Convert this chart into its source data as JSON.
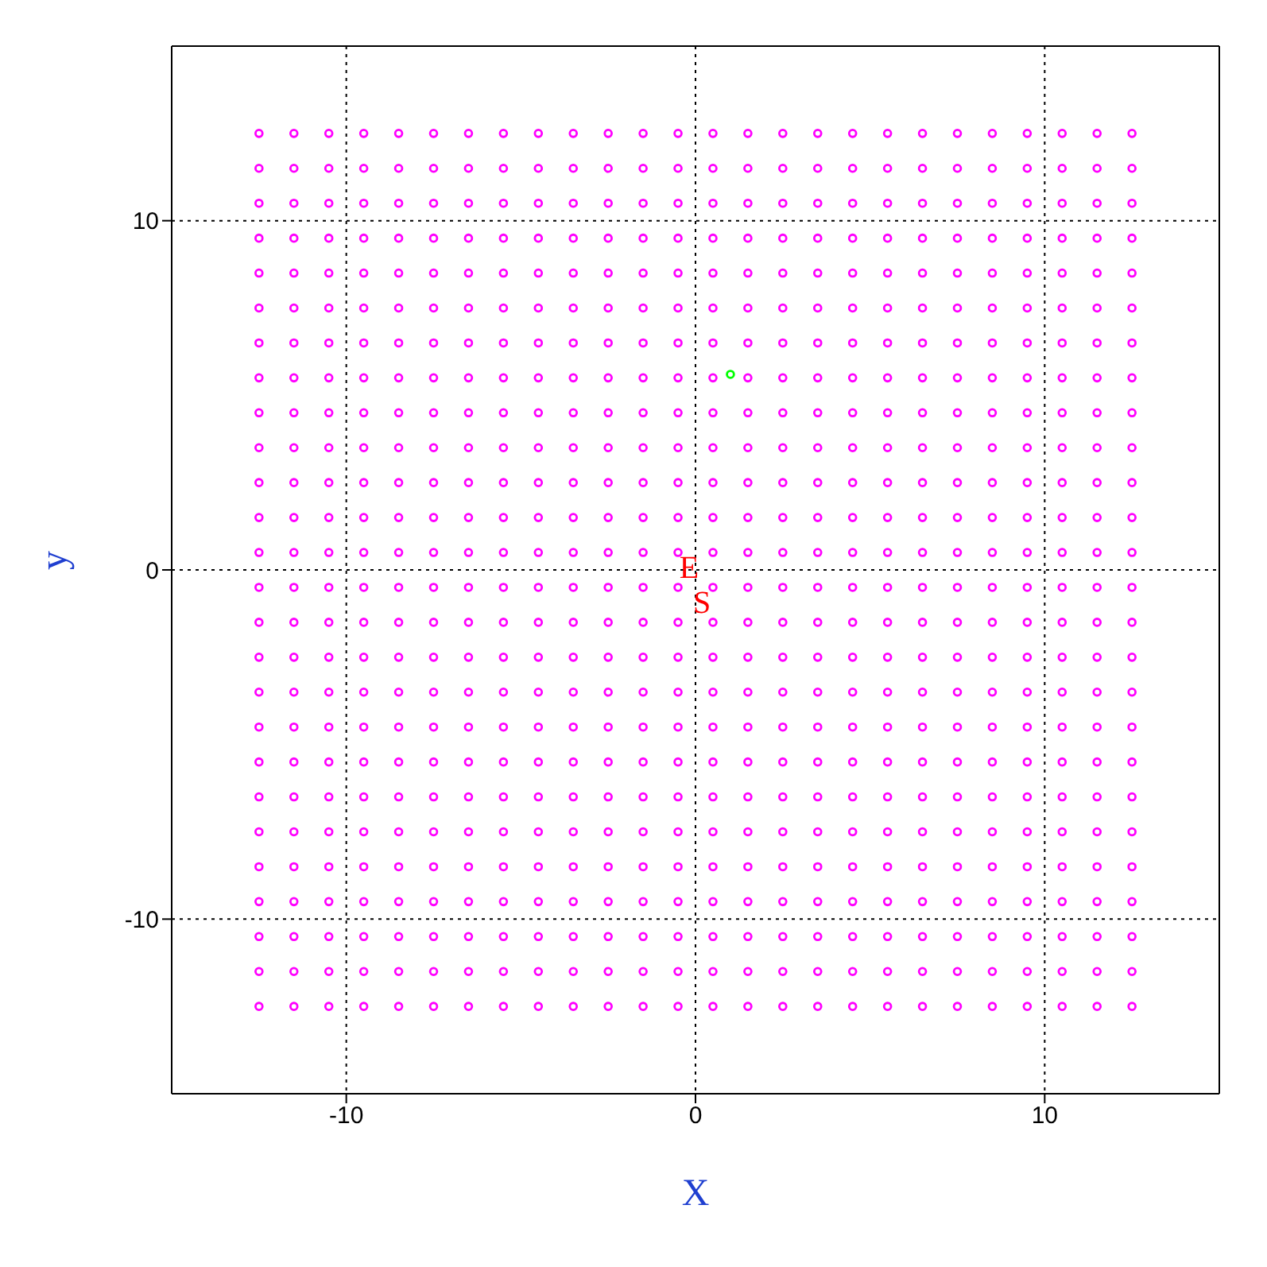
{
  "chart_data": {
    "type": "scatter",
    "xlabel": "X",
    "ylabel": "y",
    "xlim": [
      -15,
      15
    ],
    "ylim": [
      -15,
      15
    ],
    "xticks": [
      -10,
      0,
      10
    ],
    "yticks": [
      -10,
      0,
      10
    ],
    "grid": true,
    "marker": "circle",
    "x": [
      -12.5,
      -11.5,
      -10.5,
      -9.5,
      -8.5,
      -7.5,
      -6.5,
      -5.5,
      -4.5,
      -3.5,
      -2.5,
      -1.5,
      -0.5,
      0.5,
      1.5,
      2.5,
      3.5,
      4.5,
      5.5,
      6.5,
      7.5,
      8.5,
      9.5,
      10.5,
      11.5,
      12.5
    ],
    "series": [
      {
        "color": "#ff00ff",
        "values": [
          12.5,
          12.5,
          12.5,
          12.5,
          12.5,
          12.5,
          12.5,
          12.5,
          12.5,
          12.5,
          12.5,
          12.5,
          12.5,
          12.5,
          12.5,
          12.5,
          12.5,
          12.5,
          12.5,
          12.5,
          12.5,
          12.5,
          12.5,
          12.5,
          12.5,
          12.5
        ]
      },
      {
        "color": "#ff00ff",
        "values": [
          11.5,
          11.5,
          11.5,
          11.5,
          11.5,
          11.5,
          11.5,
          11.5,
          11.5,
          11.5,
          11.5,
          11.5,
          11.5,
          11.5,
          11.5,
          11.5,
          11.5,
          11.5,
          11.5,
          11.5,
          11.5,
          11.5,
          11.5,
          11.5,
          11.5,
          11.5
        ]
      },
      {
        "color": "#ff00ff",
        "values": [
          10.5,
          10.5,
          10.5,
          10.5,
          10.5,
          10.5,
          10.5,
          10.5,
          10.5,
          10.5,
          10.5,
          10.5,
          10.5,
          10.5,
          10.5,
          10.5,
          10.5,
          10.5,
          10.5,
          10.5,
          10.5,
          10.5,
          10.5,
          10.5,
          10.5,
          10.5
        ]
      },
      {
        "color": "#ff00ff",
        "values": [
          9.5,
          9.5,
          9.5,
          9.5,
          9.5,
          9.5,
          9.5,
          9.5,
          9.5,
          9.5,
          9.5,
          9.5,
          9.5,
          9.5,
          9.5,
          9.5,
          9.5,
          9.5,
          9.5,
          9.5,
          9.5,
          9.5,
          9.5,
          9.5,
          9.5,
          9.5
        ]
      },
      {
        "color": "#ff00ff",
        "values": [
          8.5,
          8.5,
          8.5,
          8.5,
          8.5,
          8.5,
          8.5,
          8.5,
          8.5,
          8.5,
          8.5,
          8.5,
          8.5,
          8.5,
          8.5,
          8.5,
          8.5,
          8.5,
          8.5,
          8.5,
          8.5,
          8.5,
          8.5,
          8.5,
          8.5,
          8.5
        ]
      },
      {
        "color": "#ff00ff",
        "values": [
          7.5,
          7.5,
          7.5,
          7.5,
          7.5,
          7.5,
          7.5,
          7.5,
          7.5,
          7.5,
          7.5,
          7.5,
          7.5,
          7.5,
          7.5,
          7.5,
          7.5,
          7.5,
          7.5,
          7.5,
          7.5,
          7.5,
          7.5,
          7.5,
          7.5,
          7.5
        ]
      },
      {
        "color": "#ff00ff",
        "values": [
          6.5,
          6.5,
          6.5,
          6.5,
          6.5,
          6.5,
          6.5,
          6.5,
          6.5,
          6.5,
          6.5,
          6.5,
          6.5,
          6.5,
          6.5,
          6.5,
          6.5,
          6.5,
          6.5,
          6.5,
          6.5,
          6.5,
          6.5,
          6.5,
          6.5,
          6.5
        ]
      },
      {
        "color": "#ff00ff",
        "values": [
          5.5,
          5.5,
          5.5,
          5.5,
          5.5,
          5.5,
          5.5,
          5.5,
          5.5,
          5.5,
          5.5,
          5.5,
          5.5,
          5.5,
          5.5,
          5.5,
          5.5,
          5.5,
          5.5,
          5.5,
          5.5,
          5.5,
          5.5,
          5.5,
          5.5,
          5.5
        ]
      },
      {
        "color": "#ff00ff",
        "values": [
          4.5,
          4.5,
          4.5,
          4.5,
          4.5,
          4.5,
          4.5,
          4.5,
          4.5,
          4.5,
          4.5,
          4.5,
          4.5,
          4.5,
          4.5,
          4.5,
          4.5,
          4.5,
          4.5,
          4.5,
          4.5,
          4.5,
          4.5,
          4.5,
          4.5,
          4.5
        ]
      },
      {
        "color": "#ff00ff",
        "values": [
          3.5,
          3.5,
          3.5,
          3.5,
          3.5,
          3.5,
          3.5,
          3.5,
          3.5,
          3.5,
          3.5,
          3.5,
          3.5,
          3.5,
          3.5,
          3.5,
          3.5,
          3.5,
          3.5,
          3.5,
          3.5,
          3.5,
          3.5,
          3.5,
          3.5,
          3.5
        ]
      },
      {
        "color": "#ff00ff",
        "values": [
          2.5,
          2.5,
          2.5,
          2.5,
          2.5,
          2.5,
          2.5,
          2.5,
          2.5,
          2.5,
          2.5,
          2.5,
          2.5,
          2.5,
          2.5,
          2.5,
          2.5,
          2.5,
          2.5,
          2.5,
          2.5,
          2.5,
          2.5,
          2.5,
          2.5,
          2.5
        ]
      },
      {
        "color": "#ff00ff",
        "values": [
          1.5,
          1.5,
          1.5,
          1.5,
          1.5,
          1.5,
          1.5,
          1.5,
          1.5,
          1.5,
          1.5,
          1.5,
          1.5,
          1.5,
          1.5,
          1.5,
          1.5,
          1.5,
          1.5,
          1.5,
          1.5,
          1.5,
          1.5,
          1.5,
          1.5,
          1.5
        ]
      },
      {
        "color": "#ff00ff",
        "values": [
          0.5,
          0.5,
          0.5,
          0.5,
          0.5,
          0.5,
          0.5,
          0.5,
          0.5,
          0.5,
          0.5,
          0.5,
          0.5,
          0.5,
          0.5,
          0.5,
          0.5,
          0.5,
          0.5,
          0.5,
          0.5,
          0.5,
          0.5,
          0.5,
          0.5,
          0.5
        ]
      },
      {
        "color": "#ff00ff",
        "values": [
          -0.5,
          -0.5,
          -0.5,
          -0.5,
          -0.5,
          -0.5,
          -0.5,
          -0.5,
          -0.5,
          -0.5,
          -0.5,
          -0.5,
          -0.5,
          -0.5,
          -0.5,
          -0.5,
          -0.5,
          -0.5,
          -0.5,
          -0.5,
          -0.5,
          -0.5,
          -0.5,
          -0.5,
          -0.5,
          -0.5
        ]
      },
      {
        "color": "#ff00ff",
        "values": [
          -1.5,
          -1.5,
          -1.5,
          -1.5,
          -1.5,
          -1.5,
          -1.5,
          -1.5,
          -1.5,
          -1.5,
          -1.5,
          -1.5,
          -1.5,
          -1.5,
          -1.5,
          -1.5,
          -1.5,
          -1.5,
          -1.5,
          -1.5,
          -1.5,
          -1.5,
          -1.5,
          -1.5,
          -1.5,
          -1.5
        ]
      },
      {
        "color": "#ff00ff",
        "values": [
          -2.5,
          -2.5,
          -2.5,
          -2.5,
          -2.5,
          -2.5,
          -2.5,
          -2.5,
          -2.5,
          -2.5,
          -2.5,
          -2.5,
          -2.5,
          -2.5,
          -2.5,
          -2.5,
          -2.5,
          -2.5,
          -2.5,
          -2.5,
          -2.5,
          -2.5,
          -2.5,
          -2.5,
          -2.5,
          -2.5
        ]
      },
      {
        "color": "#ff00ff",
        "values": [
          -3.5,
          -3.5,
          -3.5,
          -3.5,
          -3.5,
          -3.5,
          -3.5,
          -3.5,
          -3.5,
          -3.5,
          -3.5,
          -3.5,
          -3.5,
          -3.5,
          -3.5,
          -3.5,
          -3.5,
          -3.5,
          -3.5,
          -3.5,
          -3.5,
          -3.5,
          -3.5,
          -3.5,
          -3.5,
          -3.5
        ]
      },
      {
        "color": "#ff00ff",
        "values": [
          -4.5,
          -4.5,
          -4.5,
          -4.5,
          -4.5,
          -4.5,
          -4.5,
          -4.5,
          -4.5,
          -4.5,
          -4.5,
          -4.5,
          -4.5,
          -4.5,
          -4.5,
          -4.5,
          -4.5,
          -4.5,
          -4.5,
          -4.5,
          -4.5,
          -4.5,
          -4.5,
          -4.5,
          -4.5,
          -4.5
        ]
      },
      {
        "color": "#ff00ff",
        "values": [
          -5.5,
          -5.5,
          -5.5,
          -5.5,
          -5.5,
          -5.5,
          -5.5,
          -5.5,
          -5.5,
          -5.5,
          -5.5,
          -5.5,
          -5.5,
          -5.5,
          -5.5,
          -5.5,
          -5.5,
          -5.5,
          -5.5,
          -5.5,
          -5.5,
          -5.5,
          -5.5,
          -5.5,
          -5.5,
          -5.5
        ]
      },
      {
        "color": "#ff00ff",
        "values": [
          -6.5,
          -6.5,
          -6.5,
          -6.5,
          -6.5,
          -6.5,
          -6.5,
          -6.5,
          -6.5,
          -6.5,
          -6.5,
          -6.5,
          -6.5,
          -6.5,
          -6.5,
          -6.5,
          -6.5,
          -6.5,
          -6.5,
          -6.5,
          -6.5,
          -6.5,
          -6.5,
          -6.5,
          -6.5,
          -6.5
        ]
      },
      {
        "color": "#ff00ff",
        "values": [
          -7.5,
          -7.5,
          -7.5,
          -7.5,
          -7.5,
          -7.5,
          -7.5,
          -7.5,
          -7.5,
          -7.5,
          -7.5,
          -7.5,
          -7.5,
          -7.5,
          -7.5,
          -7.5,
          -7.5,
          -7.5,
          -7.5,
          -7.5,
          -7.5,
          -7.5,
          -7.5,
          -7.5,
          -7.5,
          -7.5
        ]
      },
      {
        "color": "#ff00ff",
        "values": [
          -8.5,
          -8.5,
          -8.5,
          -8.5,
          -8.5,
          -8.5,
          -8.5,
          -8.5,
          -8.5,
          -8.5,
          -8.5,
          -8.5,
          -8.5,
          -8.5,
          -8.5,
          -8.5,
          -8.5,
          -8.5,
          -8.5,
          -8.5,
          -8.5,
          -8.5,
          -8.5,
          -8.5,
          -8.5,
          -8.5
        ]
      },
      {
        "color": "#ff00ff",
        "values": [
          -9.5,
          -9.5,
          -9.5,
          -9.5,
          -9.5,
          -9.5,
          -9.5,
          -9.5,
          -9.5,
          -9.5,
          -9.5,
          -9.5,
          -9.5,
          -9.5,
          -9.5,
          -9.5,
          -9.5,
          -9.5,
          -9.5,
          -9.5,
          -9.5,
          -9.5,
          -9.5,
          -9.5,
          -9.5,
          -9.5
        ]
      },
      {
        "color": "#ff00ff",
        "values": [
          -10.5,
          -10.5,
          -10.5,
          -10.5,
          -10.5,
          -10.5,
          -10.5,
          -10.5,
          -10.5,
          -10.5,
          -10.5,
          -10.5,
          -10.5,
          -10.5,
          -10.5,
          -10.5,
          -10.5,
          -10.5,
          -10.5,
          -10.5,
          -10.5,
          -10.5,
          -10.5,
          -10.5,
          -10.5,
          -10.5
        ]
      },
      {
        "color": "#ff00ff",
        "values": [
          -11.5,
          -11.5,
          -11.5,
          -11.5,
          -11.5,
          -11.5,
          -11.5,
          -11.5,
          -11.5,
          -11.5,
          -11.5,
          -11.5,
          -11.5,
          -11.5,
          -11.5,
          -11.5,
          -11.5,
          -11.5,
          -11.5,
          -11.5,
          -11.5,
          -11.5,
          -11.5,
          -11.5,
          -11.5,
          -11.5
        ]
      },
      {
        "color": "#ff00ff",
        "values": [
          -12.5,
          -12.5,
          -12.5,
          -12.5,
          -12.5,
          -12.5,
          -12.5,
          -12.5,
          -12.5,
          -12.5,
          -12.5,
          -12.5,
          -12.5,
          -12.5,
          -12.5,
          -12.5,
          -12.5,
          -12.5,
          -12.5,
          -12.5,
          -12.5,
          -12.5,
          -12.5,
          -12.5,
          -12.5,
          -12.5
        ]
      },
      {
        "color": "#00ff00",
        "x": [
          1
        ],
        "values": [
          5.6
        ]
      }
    ],
    "annotations": [
      "E",
      "S"
    ]
  }
}
